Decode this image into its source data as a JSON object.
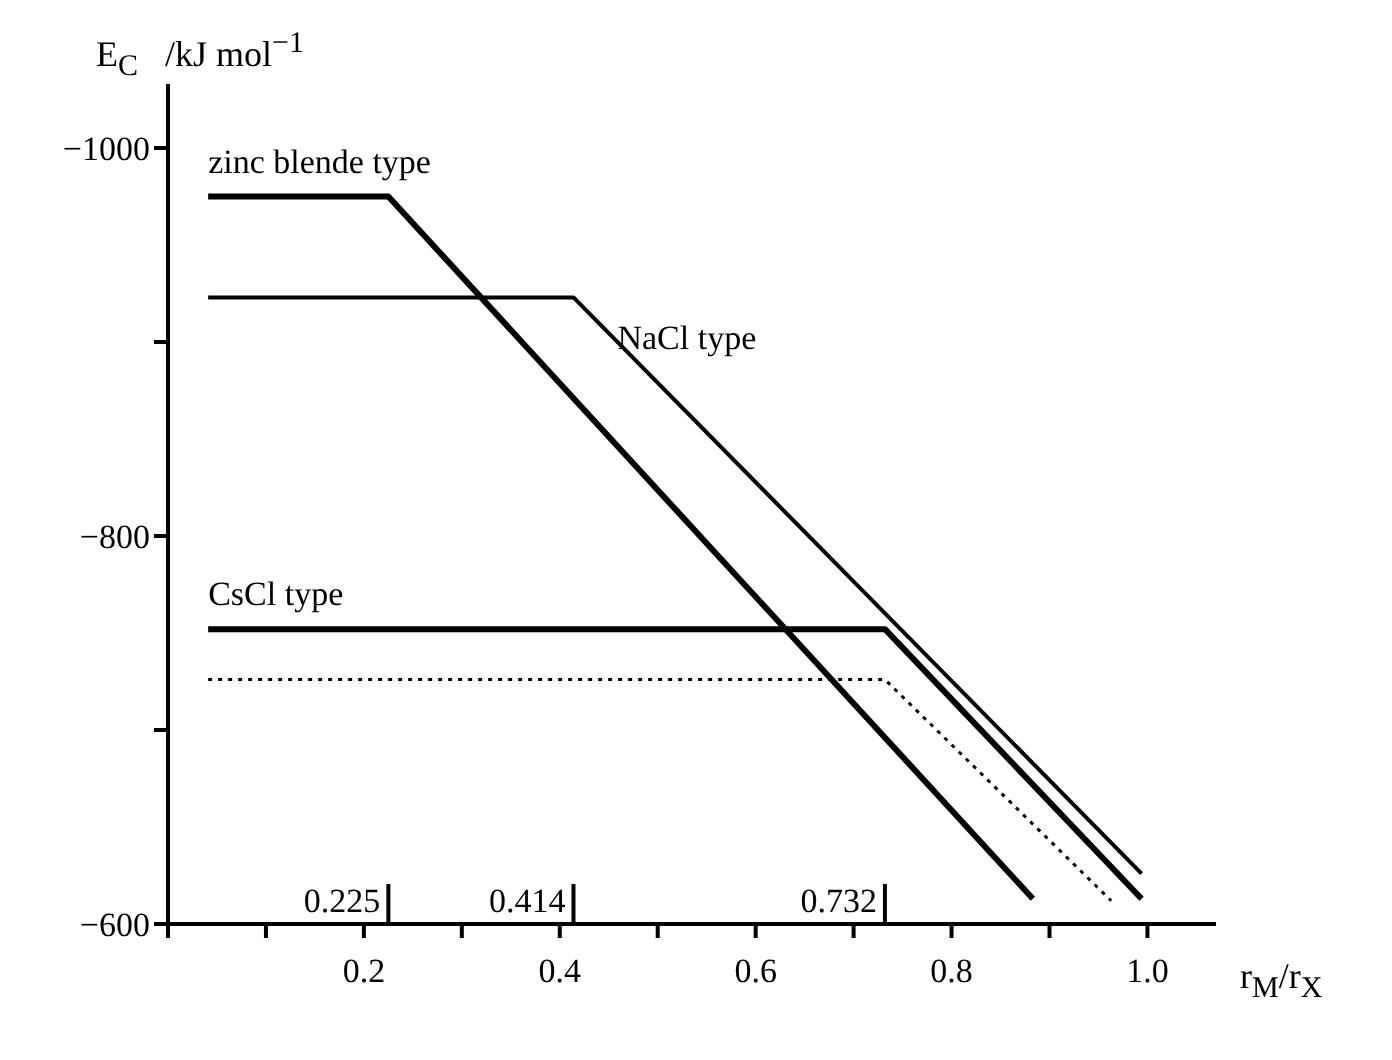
{
  "chart_data": {
    "type": "line",
    "xlabel": "r$_{M}$/r$_{X}$",
    "ylabel": "E$_{C}$   /kJ mol$^{−1}$",
    "xlim": [
      0,
      1.07
    ],
    "xticks": [
      {
        "value": 0,
        "label": null
      },
      {
        "value": 0.1,
        "label": null
      },
      0.2,
      {
        "value": 0.3,
        "label": null
      },
      0.4,
      {
        "value": 0.5,
        "label": null
      },
      0.6,
      {
        "value": 0.7,
        "label": null
      },
      0.8,
      {
        "value": 0.9,
        "label": null
      },
      {
        "value": 1,
        "label": "1.0"
      }
    ],
    "ylim": [
      -600,
      -1033
    ],
    "yticks": [
      {
        "value": -600,
        "label": "−600"
      },
      {
        "value": -700,
        "label": null
      },
      {
        "value": -800,
        "label": "−800"
      },
      {
        "value": -900,
        "label": null
      },
      {
        "value": -1000,
        "label": "−1000"
      }
    ],
    "grid": false,
    "legend": false,
    "marker": "none",
    "series": [
      {
        "name": "zinc blende type",
        "color": "#000000",
        "x": [
          0.041,
          0.225,
          0.883
        ],
        "values": [
          -975,
          -975,
          -613
        ]
      },
      {
        "name": "NaCl type",
        "color": "#000000",
        "x": [
          0.041,
          0.414,
          0.994
        ],
        "values": [
          -923,
          -923,
          -626
        ]
      },
      {
        "name": "CsCl type",
        "color": "#000000",
        "x": [
          0.041,
          0.732,
          0.994
        ],
        "values": [
          -752,
          -752,
          -613
        ]
      },
      {
        "color": "#000000",
        "line_style": "dotted",
        "x": [
          0.041,
          0.732,
          0.963
        ],
        "values": [
          -726,
          -726,
          -612
        ]
      }
    ],
    "ref_lines": [
      {
        "axis": "x",
        "value": 0.225,
        "label": "0.225"
      },
      {
        "axis": "x",
        "value": 0.414,
        "label": "0.414"
      },
      {
        "axis": "x",
        "value": 0.732,
        "label": "0.732"
      }
    ]
  }
}
